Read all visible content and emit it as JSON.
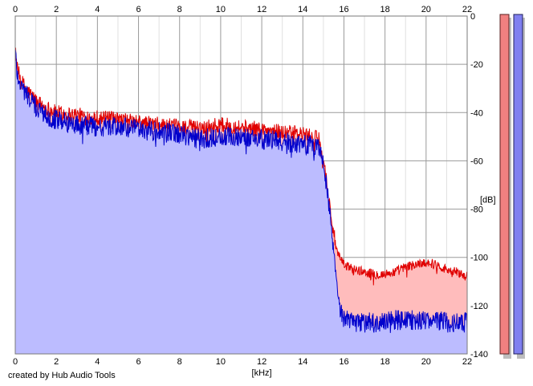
{
  "footer": {
    "credit": "created by Hub Audio Tools"
  },
  "chart_data": {
    "type": "area",
    "xlabel": "[kHz]",
    "ylabel": "[dB]",
    "xlim": [
      0,
      22
    ],
    "ylim": [
      -140,
      0
    ],
    "x_ticks": [
      "0",
      "2",
      "4",
      "6",
      "8",
      "10",
      "12",
      "14",
      "16",
      "18",
      "20",
      "22"
    ],
    "y_ticks": [
      "0",
      "-20",
      "-40",
      "-60",
      "-80",
      "-100",
      "-120",
      "-140"
    ],
    "grid": true,
    "colors": {
      "left_line": "#e00000",
      "left_fill": "#ffbcbc",
      "right_line": "#0000cc",
      "right_fill": "#bcbcff",
      "left_meter": "#f08080",
      "right_meter": "#8080f0"
    },
    "series": [
      {
        "channel": "left",
        "x": [
          0,
          0.1,
          0.3,
          0.6,
          1,
          1.5,
          2,
          3,
          4,
          5,
          6,
          7,
          8,
          9,
          10,
          11,
          12,
          13,
          14,
          14.8,
          15.1,
          15.3,
          15.5,
          15.7,
          16,
          16.5,
          17,
          17.5,
          18,
          18.5,
          19,
          19.5,
          20,
          20.5,
          21,
          21.5,
          22
        ],
        "values": [
          -12,
          -22,
          -27,
          -31,
          -35,
          -38,
          -40,
          -41,
          -42,
          -43,
          -44,
          -45,
          -46,
          -46,
          -45,
          -46,
          -47,
          -48,
          -49,
          -51,
          -65,
          -78,
          -90,
          -99,
          -103,
          -105,
          -106,
          -107,
          -107,
          -106,
          -104,
          -103,
          -102,
          -103,
          -105,
          -106,
          -108
        ]
      },
      {
        "channel": "right",
        "x": [
          0,
          0.1,
          0.3,
          0.6,
          1,
          1.5,
          2,
          3,
          4,
          5,
          6,
          7,
          8,
          9,
          10,
          11,
          12,
          13,
          14,
          14.8,
          15.1,
          15.3,
          15.5,
          15.7,
          16,
          16.5,
          17,
          17.5,
          18,
          18.5,
          19,
          19.5,
          20,
          20.5,
          21,
          21.5,
          22
        ],
        "values": [
          -14,
          -24,
          -29,
          -33,
          -38,
          -41,
          -43,
          -45,
          -46,
          -46,
          -47,
          -48,
          -49,
          -51,
          -50,
          -50,
          -51,
          -52,
          -53,
          -54,
          -66,
          -80,
          -96,
          -118,
          -126,
          -127,
          -127,
          -127,
          -127,
          -126,
          -126,
          -126,
          -126,
          -126,
          -127,
          -127,
          -127
        ]
      }
    ]
  }
}
